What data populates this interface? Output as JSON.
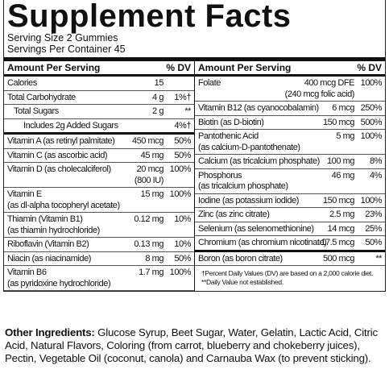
{
  "title": "Supplement Facts",
  "serving_size": "Serving Size 2 Gummies",
  "servings_per_container": "Servings Per Container 45",
  "columns": [
    {
      "header": [
        "Amount Per Serving",
        "% DV"
      ],
      "sections": [
        [
          {
            "name": [
              "Calories"
            ],
            "amount": [
              "15"
            ]
          },
          {
            "name": [
              "Total Carbohydrate"
            ],
            "amount": [
              "4 g"
            ],
            "dv": "1%†"
          },
          {
            "name": [
              "Total Sugars"
            ],
            "amount": [
              "2 g"
            ],
            "dv": "**"
          },
          {
            "name": [
              "Includes 2g Added Sugars"
            ],
            "dv": "4%†"
          }
        ],
        [
          {
            "name": [
              "Vitamin A (as retinyl palmitate)"
            ],
            "amount": [
              "450 mcg"
            ],
            "dv": "50%"
          },
          {
            "name": [
              "Vitamin C (as ascorbic acid)"
            ],
            "amount": [
              "45 mg"
            ],
            "dv": "50%"
          },
          {
            "name": [
              "Vitamin D (as cholecalciferol)"
            ],
            "amount": [
              "20 mcg",
              "(800 IU)"
            ],
            "dv": "100%"
          },
          {
            "name": [
              "Vitamin E",
              "(as dl-alpha tocopheryl acetate)"
            ],
            "amount": [
              "15 mg"
            ],
            "dv": "100%"
          },
          {
            "name": [
              "Thiamin (Vitamin B1)",
              "(as thiamin hydrochloride)"
            ],
            "amount": [
              "0.12 mg"
            ],
            "dv": "10%"
          },
          {
            "name": [
              "Riboflavin (Vitamin B2)"
            ],
            "amount": [
              "0.13 mg"
            ],
            "dv": "10%"
          },
          {
            "name": [
              "Niacin (as niacinamide)"
            ],
            "amount": [
              "8 mg"
            ],
            "dv": "50%"
          },
          {
            "name": [
              "Vitamin B6",
              "(as pyridoxine hydrochloride)"
            ],
            "amount": [
              "1.7 mg"
            ],
            "dv": "100%"
          }
        ]
      ]
    },
    {
      "header": [
        "Amount Per Serving",
        "% DV"
      ],
      "sections": [
        [
          {
            "name": [
              "Folate"
            ],
            "amount": [
              "400 mcg DFE",
              "(240 mcg folic acid)"
            ],
            "dv": "100%"
          },
          {
            "name": [
              "Vitamin B12 (as cyanocobalamin)"
            ],
            "amount": [
              "6 mcg"
            ],
            "dv": "250%"
          },
          {
            "name": [
              "Biotin (as D-biotin)"
            ],
            "amount": [
              "150 mcg"
            ],
            "dv": "500%"
          },
          {
            "name": [
              "Pantothenic Acid",
              "(as calcium-D-pantothenate)"
            ],
            "amount": [
              "5 mg"
            ],
            "dv": "100%"
          },
          {
            "name": [
              "Calcium (as tricalcium phosphate)"
            ],
            "amount": [
              "100 mg"
            ],
            "dv": "8%"
          },
          {
            "name": [
              "Phosphorus",
              "(as tricalcium phosphate)"
            ],
            "amount": [
              "46 mg"
            ],
            "dv": "4%"
          },
          {
            "name": [
              "Iodine (as potassium iodide)"
            ],
            "amount": [
              "150 mcg"
            ],
            "dv": "100%"
          },
          {
            "name": [
              "Zinc (as zinc citrate)"
            ],
            "amount": [
              "2.5 mg"
            ],
            "dv": "23%"
          },
          {
            "name": [
              "Selenium (as selenomethionine)"
            ],
            "amount": [
              "14 mcg"
            ],
            "dv": "25%"
          },
          {
            "name": [
              "Chromium (as chromium nicotinate)"
            ],
            "amount": [
              "17.5 mcg"
            ],
            "dv": "50%"
          }
        ],
        [
          {
            "name": [
              "Boron (as boron citrate)"
            ],
            "amount": [
              "500 mcg"
            ],
            "dv": "**"
          }
        ]
      ],
      "footnotes": [
        "†Percent Daily Values (DV) are based on a 2,000 calorie diet.",
        "**Daily Value not established."
      ]
    }
  ],
  "other_ingredients": {
    "label": "Other Ingredients:",
    "text": "Glucose Syrup, Beet Sugar, Water, Gelatin, Lactic Acid, Citric Acid, Natural Flavors, Coloring (from carrot, blueberry and chokeberry juices), Pectin, Vegetable Oil (coconut, canola) and Carnauba Wax (to prevent sticking)."
  }
}
